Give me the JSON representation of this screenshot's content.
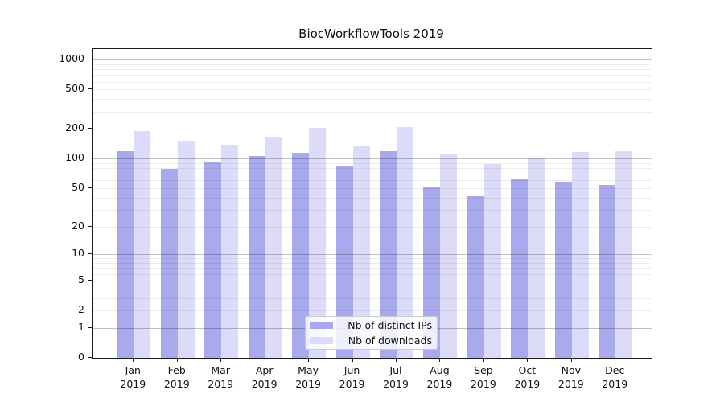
{
  "chart_data": {
    "type": "bar",
    "title": "BiocWorkflowTools 2019",
    "categories": [
      "Jan 2019",
      "Feb 2019",
      "Mar 2019",
      "Apr 2019",
      "May 2019",
      "Jun 2019",
      "Jul 2019",
      "Aug 2019",
      "Sep 2019",
      "Oct 2019",
      "Nov 2019",
      "Dec 2019"
    ],
    "series": [
      {
        "name": "Nb of distinct IPs",
        "color": "#a9a9ee",
        "values": [
          120,
          78,
          92,
          106,
          115,
          83,
          118,
          52,
          41,
          62,
          58,
          54
        ]
      },
      {
        "name": "Nb of downloads",
        "color": "#dcdcf8",
        "values": [
          192,
          152,
          138,
          165,
          207,
          133,
          208,
          112,
          88,
          100,
          117,
          120
        ]
      }
    ],
    "xlabel": "",
    "ylabel": "",
    "y_scale": "log10(value+1)",
    "ylim": [
      0,
      1280
    ],
    "y_tick_values": [
      0,
      1,
      2,
      5,
      10,
      20,
      50,
      100,
      200,
      500,
      1000
    ],
    "grid": "horizontal, minor light + major dark at powers of ten",
    "legend_position": "lower center",
    "colors": {
      "background": "#ffffff",
      "grid_major": "rgba(0,0,0,0.24)",
      "grid_minor": "rgba(0,0,0,0.07)",
      "spine": "#1a1a1a",
      "text": "#111111"
    }
  }
}
